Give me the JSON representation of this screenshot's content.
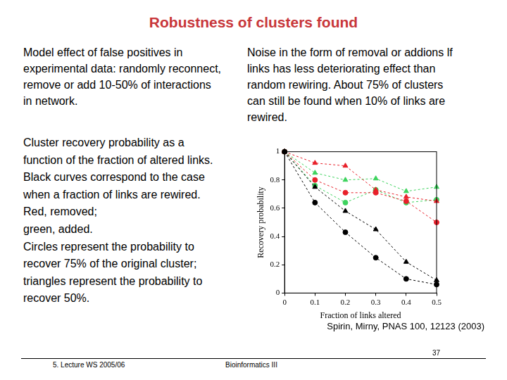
{
  "slide": {
    "title": "Robustness of clusters found",
    "left_text": [
      "Model effect of false positives in",
      "experimental data: randomly reconnect,",
      "remove or add 10-50% of interactions",
      "in network."
    ],
    "right_text": [
      "Noise in the form of removal or addions lf",
      "links has less deteriorating effect than",
      "random rewiring. About 75% of clusters",
      "can still be found when 10% of links are",
      "rewired."
    ],
    "caption": [
      "Cluster recovery probability as a",
      "function of the fraction of altered links.",
      "Black curves correspond to the case",
      "when a fraction of links are rewired.",
      "Red, removed;",
      "green, added.",
      "Circles represent the probability to",
      "recover 75% of the original cluster;",
      "triangles represent the probability to",
      "recover 50%."
    ],
    "citation": "Spirin, Mirny, PNAS 100, 12123 (2003)",
    "footer_left": "5. Lecture WS 2005/06",
    "footer_center": "Bioinformatics III",
    "page_number": "37"
  },
  "chart_data": {
    "type": "line",
    "x_label": "Fraction of links altered",
    "y_label": "Recovery probability",
    "x": [
      0,
      0.1,
      0.2,
      0.3,
      0.4,
      0.5
    ],
    "series": [
      {
        "color": "#000000",
        "marker": "circle",
        "line_style": "dashed",
        "values": [
          1,
          0.64,
          0.43,
          0.25,
          0.1,
          0.06
        ]
      },
      {
        "color": "#000000",
        "marker": "triangle",
        "line_style": "dashed",
        "values": [
          1,
          0.75,
          0.58,
          0.45,
          0.22,
          0.09
        ]
      },
      {
        "color": "#e8202a",
        "marker": "circle",
        "line_style": "dashed",
        "values": [
          1,
          0.8,
          0.71,
          0.71,
          0.65,
          0.5
        ]
      },
      {
        "color": "#e8202a",
        "marker": "triangle",
        "line_style": "dashed",
        "values": [
          1,
          0.92,
          0.9,
          0.73,
          0.68,
          0.65
        ]
      },
      {
        "color": "#3ed35e",
        "marker": "circle",
        "line_style": "dashed",
        "values": [
          1,
          0.76,
          0.64,
          0.73,
          0.64,
          0.66
        ]
      },
      {
        "color": "#3ed35e",
        "marker": "triangle",
        "line_style": "dashed",
        "values": [
          1,
          0.85,
          0.8,
          0.81,
          0.72,
          0.75
        ]
      }
    ],
    "xlim": [
      0,
      0.5
    ],
    "xticks": [
      0,
      0.1,
      0.2,
      0.3,
      0.4,
      0.5
    ],
    "ylim": [
      0,
      1
    ],
    "yticks": [
      0,
      0.2,
      0.4,
      0.6,
      0.8,
      1
    ],
    "grid": false
  }
}
